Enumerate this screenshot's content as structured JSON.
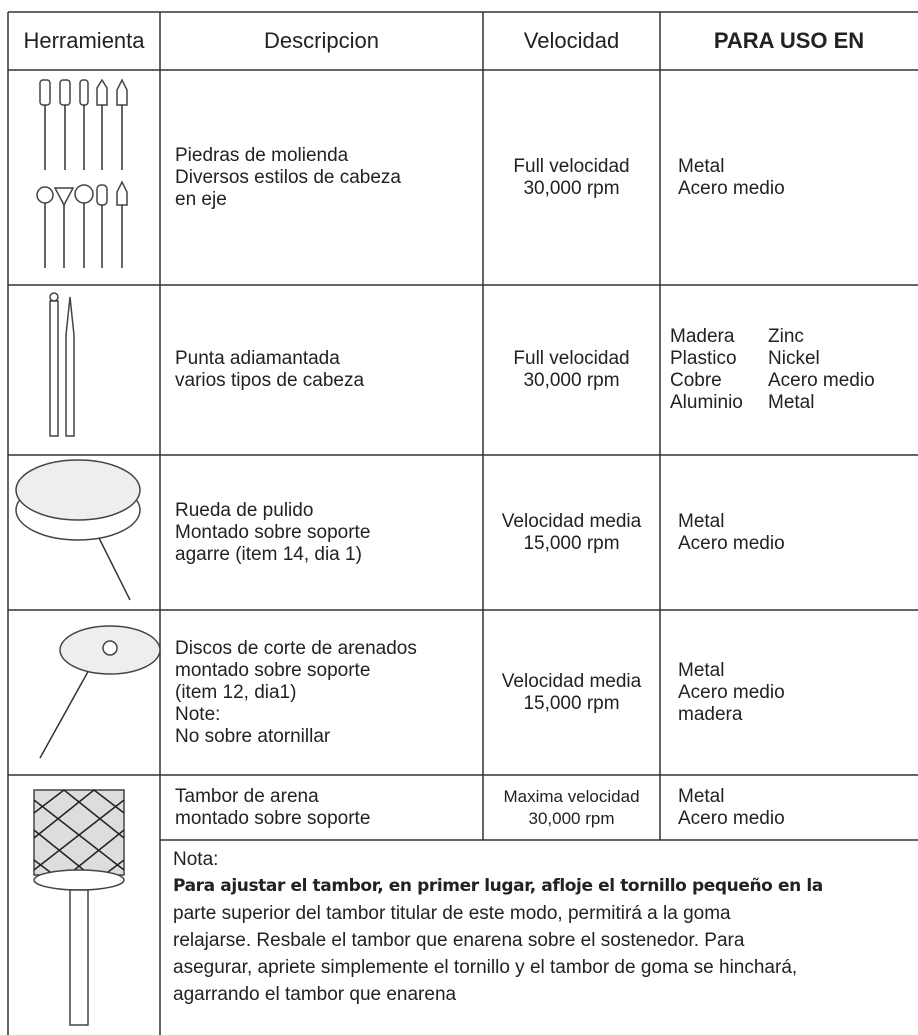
{
  "header": [
    "Herramienta",
    "Descripcion",
    "Velocidad",
    "PARA USO EN"
  ],
  "rows": [
    {
      "description": [
        "Piedras de molienda",
        "Diversos estilos de cabeza",
        "en eje"
      ],
      "speed": [
        "Full velocidad",
        "30,000 rpm"
      ],
      "uses": [
        "Metal",
        "Acero medio"
      ]
    },
    {
      "description": [
        "Punta adiamantada",
        "varios tipos de cabeza"
      ],
      "speed": [
        "Full velocidad",
        "30,000 rpm"
      ],
      "uses": [
        [
          "Madera",
          "Zinc"
        ],
        [
          "Plastico",
          "Nickel"
        ],
        [
          "Cobre",
          "Acero medio"
        ],
        [
          "Aluminio",
          "Metal"
        ]
      ]
    },
    {
      "description": [
        "Rueda de pulido",
        "Montado sobre  soporte",
        "agarre (item 14, dia 1)"
      ],
      "speed": [
        "Velocidad media",
        "15,000 rpm"
      ],
      "uses": [
        "Metal",
        "Acero medio"
      ]
    },
    {
      "description": [
        "Discos de corte de arenados",
        "montado sobre  soporte",
        "(item 12, dia1)",
        "Note:",
        "No sobre atornillar"
      ],
      "speed": [
        "Velocidad media",
        "15,000 rpm"
      ],
      "uses": [
        "Metal",
        "Acero medio",
        "madera"
      ]
    },
    {
      "description": [
        "Tambor de arena",
        "montado sobre soporte"
      ],
      "speed": [
        "Maxima velocidad",
        "30,000 rpm"
      ],
      "uses": [
        "Metal",
        "Acero medio"
      ]
    }
  ],
  "note": {
    "label": "Nota:",
    "emphasis": "Para ajustar el tambor, en primer lugar, afloje el tornillo pequeño en la",
    "lines": [
      "parte superior del tambor titular de este modo,  permitirá a la goma",
      "relajarse. Resbale el tambor que enarena sobre el sostenedor. Para",
      "asegurar, apriete simplemente el tornillo y el tambor de goma se hinchará,",
      "agarrando el tambor que enarena"
    ]
  }
}
